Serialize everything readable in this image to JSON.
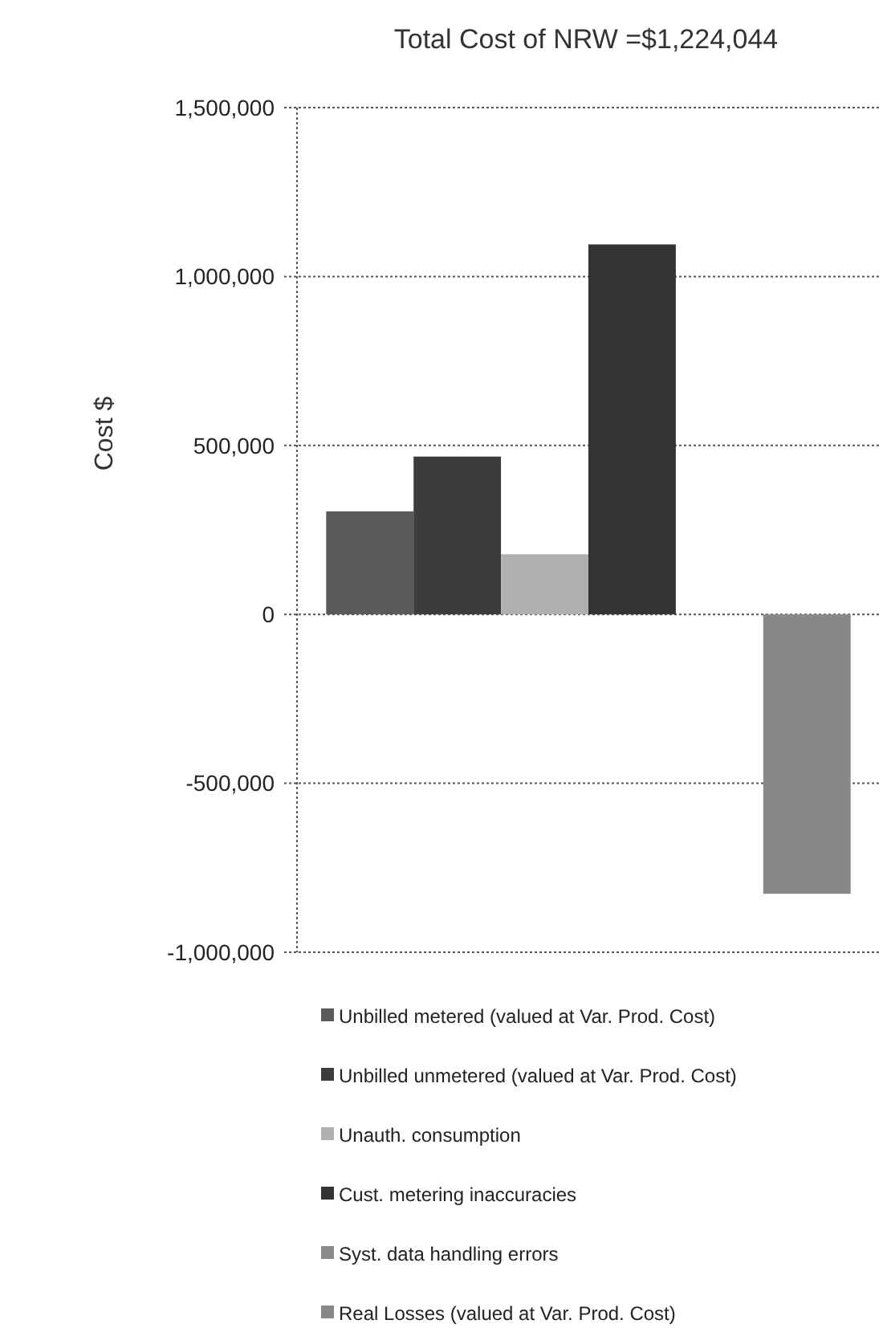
{
  "chart_data": {
    "type": "bar",
    "title": "Total Cost of NRW =$1,224,044",
    "ylabel": "Cost $",
    "categories": [
      null
    ],
    "series": [
      {
        "name": "Unbilled metered (valued at Var. Prod. Cost)",
        "color": "#5a5a5a",
        "values": [
          305000
        ]
      },
      {
        "name": "Unbilled unmetered (valued at Var. Prod. Cost)",
        "color": "#3c3c3c",
        "values": [
          467000
        ]
      },
      {
        "name": "Unauth. consumption",
        "color": "#b0b0b0",
        "values": [
          178000
        ]
      },
      {
        "name": "Cust. metering inaccuracies",
        "color": "#333333",
        "values": [
          1095000
        ]
      },
      {
        "name": "Syst. data handling errors",
        "color": "#8a8a8a",
        "values": [
          0
        ]
      },
      {
        "name": "Real Losses (valued at Var. Prod. Cost)",
        "color": "#888888",
        "values": [
          -827000
        ]
      }
    ],
    "ylim": [
      -1000000,
      1500000
    ],
    "yticks": [
      {
        "value": -1000000,
        "label": "-1,000,000"
      },
      {
        "value": -500000,
        "label": "-500,000"
      },
      0,
      {
        "value": 500000,
        "label": "500,000"
      },
      {
        "value": 1000000,
        "label": "1,000,000"
      },
      {
        "value": 1500000,
        "label": "1,500,000"
      }
    ],
    "grid": "y",
    "legend": "bottom"
  }
}
